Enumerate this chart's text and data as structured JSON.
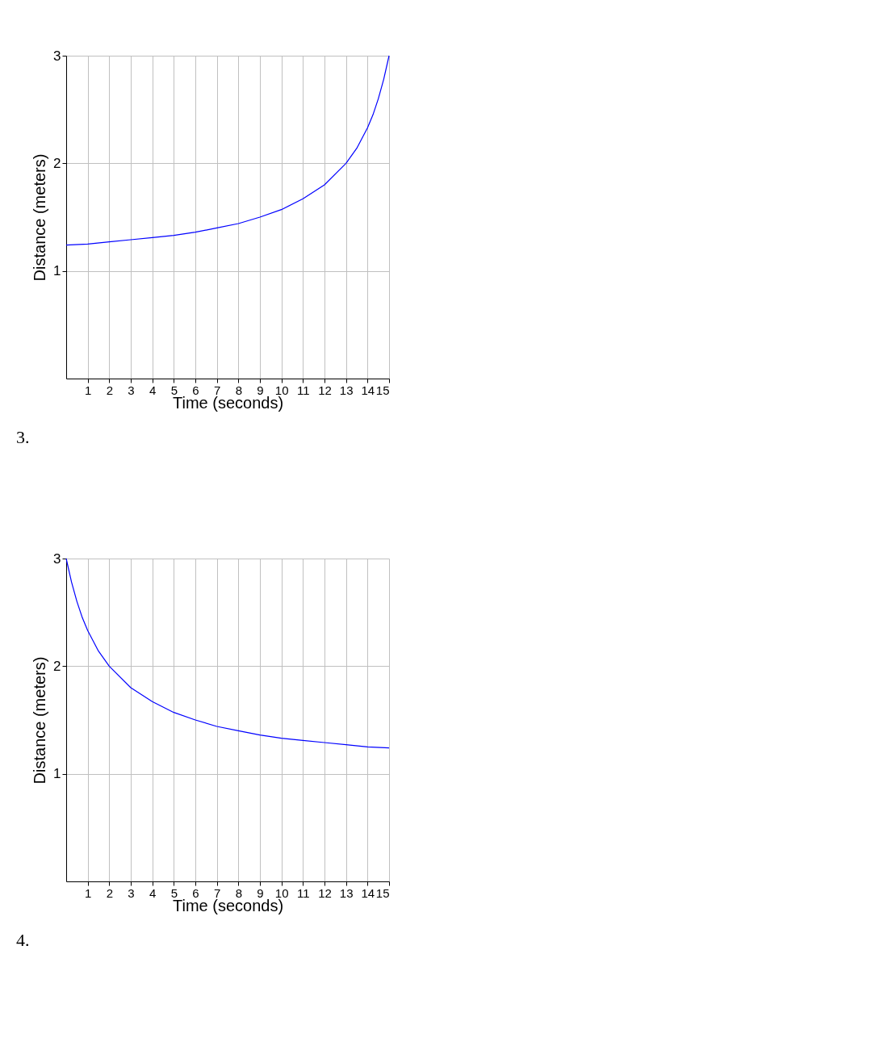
{
  "chart_data": [
    {
      "type": "line",
      "xlabel": "Time (seconds)",
      "ylabel": "Distance (meters)",
      "annotations": [
        "3."
      ],
      "x": [
        0,
        1,
        2,
        3,
        4,
        5,
        6,
        7,
        8,
        9,
        10,
        11,
        12,
        13,
        13.5,
        14,
        14.25,
        14.5,
        14.75,
        15
      ],
      "series": [
        {
          "color": "#0000ff",
          "values": [
            1.24,
            1.25,
            1.27,
            1.29,
            1.31,
            1.33,
            1.36,
            1.4,
            1.44,
            1.5,
            1.57,
            1.67,
            1.8,
            2.0,
            2.14,
            2.33,
            2.45,
            2.6,
            2.78,
            3.0
          ]
        }
      ],
      "xlim": [
        0,
        15
      ],
      "ylim": [
        0,
        3
      ],
      "xticks": [
        1,
        2,
        3,
        4,
        5,
        6,
        7,
        8,
        9,
        10,
        11,
        12,
        13,
        14,
        15
      ],
      "yticks": [
        1,
        2,
        3
      ],
      "grid": true,
      "marker": "none",
      "line_style": "solid"
    },
    {
      "type": "line",
      "xlabel": "Time (seconds)",
      "ylabel": "Distance (meters)",
      "annotations": [
        "4."
      ],
      "x": [
        0,
        0.25,
        0.5,
        0.75,
        1,
        1.5,
        2,
        3,
        4,
        5,
        6,
        7,
        8,
        9,
        10,
        11,
        12,
        13,
        14,
        15
      ],
      "series": [
        {
          "color": "#0000ff",
          "values": [
            3.0,
            2.78,
            2.6,
            2.45,
            2.33,
            2.14,
            2.0,
            1.8,
            1.67,
            1.57,
            1.5,
            1.44,
            1.4,
            1.36,
            1.33,
            1.31,
            1.29,
            1.27,
            1.25,
            1.24
          ]
        }
      ],
      "xlim": [
        0,
        15
      ],
      "ylim": [
        0,
        3
      ],
      "xticks": [
        1,
        2,
        3,
        4,
        5,
        6,
        7,
        8,
        9,
        10,
        11,
        12,
        13,
        14,
        15
      ],
      "yticks": [
        1,
        2,
        3
      ],
      "grid": true,
      "marker": "none",
      "line_style": "solid"
    }
  ]
}
